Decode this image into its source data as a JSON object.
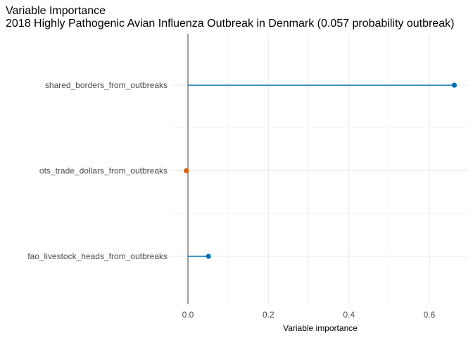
{
  "chart_data": {
    "type": "lollipop",
    "title": "Variable Importance",
    "subtitle": "2018 Highly Pathogenic Avian Influenza Outbreak in Denmark (0.057 probability outbreak)",
    "xlabel": "Variable importance",
    "ylabel": "",
    "categories": [
      "shared_borders_from_outbreaks",
      "ots_trade_dollars_from_outbreaks",
      "fao_livestock_heads_from_outbreaks"
    ],
    "values": [
      0.662,
      -0.004,
      0.051
    ],
    "point_colors": [
      "#0072B2",
      "#D55E00",
      "#0072B2"
    ],
    "xlim": [
      -0.045,
      0.69
    ],
    "xticks": [
      0.0,
      0.2,
      0.4,
      0.6
    ],
    "xtick_labels": [
      "0.0",
      "0.2",
      "0.4",
      "0.6"
    ],
    "grid": true,
    "zero_line_color": "#555555",
    "grid_color": "#ebebeb"
  }
}
